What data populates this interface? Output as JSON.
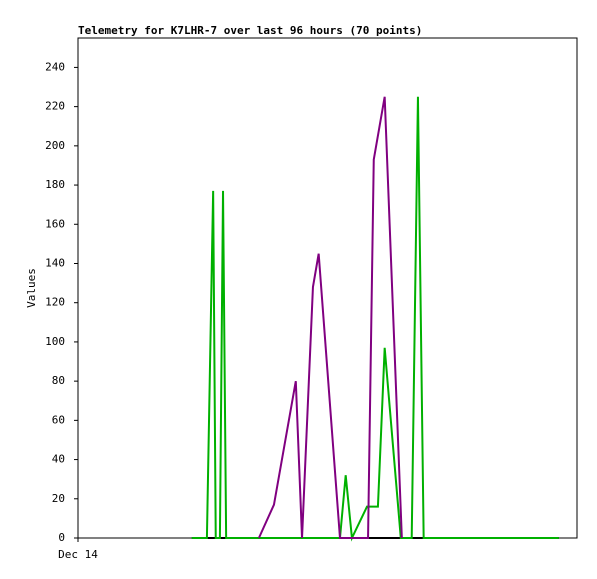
{
  "chart_data": {
    "type": "line",
    "title": "Telemetry for K7LHR-7 over last 96 hours (70 points)",
    "y_label": "Values",
    "xlim": [
      0,
      96
    ],
    "xticks": [
      {
        "value": 0,
        "label": "Dec 14"
      }
    ],
    "ylim": [
      0,
      255
    ],
    "yticks": [
      0,
      20,
      40,
      60,
      80,
      100,
      120,
      140,
      160,
      180,
      200,
      220,
      240
    ],
    "series": [
      {
        "color": "#000000",
        "x": [
          21.9,
          92.5
        ],
        "values": [
          0,
          0
        ]
      },
      {
        "color": "#00b000",
        "x": [
          21.9,
          24.8,
          26.0,
          26.5,
          27.3,
          27.9,
          28.5,
          50.4,
          51.5,
          52.7,
          55.6,
          57.7,
          59.0,
          62.1,
          64.2,
          65.4,
          66.5,
          92.5
        ],
        "values": [
          0,
          0,
          177,
          0,
          0,
          177,
          0,
          0,
          32,
          0,
          16,
          16,
          97,
          0,
          0,
          225,
          0,
          0
        ]
      },
      {
        "color": "#800080",
        "x": [
          34.8,
          37.7,
          41.9,
          43.1,
          45.2,
          46.3,
          50.4,
          55.8,
          56.9,
          59.0,
          62.3
        ],
        "values": [
          0,
          17,
          80,
          0,
          128,
          145,
          0,
          0,
          193,
          225,
          0
        ]
      }
    ]
  }
}
